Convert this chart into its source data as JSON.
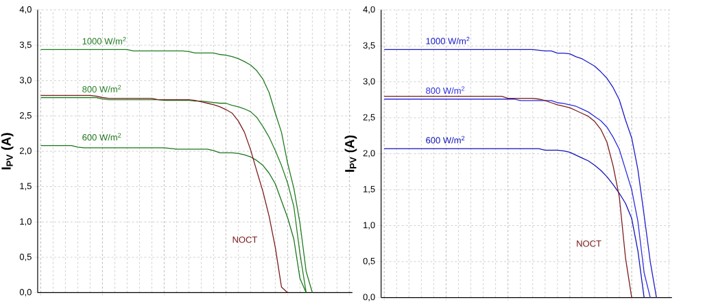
{
  "chart_data": [
    {
      "type": "line",
      "ylabel": "I$_{PV}$ (A)",
      "grid": true,
      "categories": [
        null,
        null,
        null,
        null,
        null,
        null,
        null,
        null,
        null,
        null,
        null,
        null,
        null,
        null,
        null,
        null,
        null,
        null,
        null,
        null,
        null,
        null,
        null,
        null,
        null,
        null,
        null,
        null,
        null,
        null,
        null,
        null,
        null,
        null,
        null,
        null,
        null,
        null,
        null,
        null,
        null,
        null,
        null,
        null,
        null,
        null,
        null,
        null,
        null,
        null,
        null
      ],
      "ylim": [
        0,
        4
      ],
      "yticks": [
        {
          "value": 0,
          "label": "0,0"
        },
        {
          "value": 0.5,
          "label": "0,5"
        },
        {
          "value": 1,
          "label": "1,0"
        },
        {
          "value": 1.5,
          "label": "1,5"
        },
        {
          "value": 2,
          "label": "2,0"
        },
        {
          "value": 2.5,
          "label": "2,5"
        },
        {
          "value": 3,
          "label": "3,0"
        },
        {
          "value": 3.5,
          "label": "3,5"
        },
        {
          "value": 4,
          "label": "4,0"
        }
      ],
      "series": [
        {
          "name": "1000 W/m$^{2}$",
          "color": "#1e7a1e",
          "values": [
            3.44,
            3.44,
            3.44,
            3.44,
            3.44,
            3.44,
            3.44,
            3.44,
            3.44,
            3.44,
            3.44,
            3.44,
            3.44,
            3.44,
            3.44,
            3.42,
            3.42,
            3.42,
            3.42,
            3.42,
            3.42,
            3.42,
            3.42,
            3.42,
            3.41,
            3.39,
            3.39,
            3.39,
            3.39,
            3.37,
            3.36,
            3.34,
            3.31,
            3.27,
            3.22,
            3.14,
            3.02,
            2.83,
            2.54,
            2.27,
            1.83,
            1.48,
            0.98,
            0.3,
            0,
            null,
            null,
            null,
            null,
            null,
            null
          ]
        },
        {
          "name": "800 W/m$^{2}$",
          "color": "#237f23",
          "values": [
            2.76,
            2.76,
            2.76,
            2.76,
            2.76,
            2.76,
            2.76,
            2.76,
            2.76,
            2.76,
            2.74,
            2.73,
            2.73,
            2.73,
            2.73,
            2.73,
            2.73,
            2.73,
            2.73,
            2.73,
            2.72,
            2.72,
            2.72,
            2.72,
            2.72,
            2.71,
            2.71,
            2.7,
            2.69,
            2.68,
            2.68,
            2.65,
            2.63,
            2.6,
            2.56,
            2.48,
            2.35,
            2.2,
            2.01,
            1.8,
            1.55,
            1.22,
            0.55,
            0,
            null,
            null,
            null,
            null,
            null,
            null,
            null
          ]
        },
        {
          "name": "600 W/m$^{2}$",
          "color": "#197519",
          "values": [
            2.08,
            2.08,
            2.08,
            2.08,
            2.08,
            2.08,
            2.06,
            2.05,
            2.05,
            2.05,
            2.05,
            2.05,
            2.05,
            2.05,
            2.05,
            2.05,
            2.05,
            2.05,
            2.05,
            2.05,
            2.05,
            2.04,
            2.03,
            2.03,
            2.03,
            2.03,
            2.03,
            2.03,
            2.01,
            1.98,
            1.98,
            1.98,
            1.97,
            1.95,
            1.92,
            1.87,
            1.8,
            1.69,
            1.54,
            1.3,
            1.06,
            0.76,
            0.2,
            0,
            null,
            null,
            null,
            null,
            null,
            null,
            null
          ]
        },
        {
          "name": "NOCT",
          "color": "#7a1a1a",
          "values": [
            2.79,
            2.79,
            2.79,
            2.79,
            2.79,
            2.79,
            2.79,
            2.79,
            2.79,
            2.78,
            2.76,
            2.75,
            2.75,
            2.75,
            2.75,
            2.75,
            2.75,
            2.75,
            2.75,
            2.73,
            2.73,
            2.73,
            2.73,
            2.73,
            2.73,
            2.72,
            2.7,
            2.68,
            2.66,
            2.63,
            2.59,
            2.54,
            2.43,
            2.27,
            2.02,
            1.72,
            1.43,
            1.08,
            0.64,
            0.08,
            0,
            null,
            null,
            null,
            null,
            null,
            null,
            null,
            null,
            null,
            null
          ]
        }
      ]
    },
    {
      "type": "line",
      "ylabel": "I$_{PV}$ (A)",
      "grid": true,
      "categories": [
        null,
        null,
        null,
        null,
        null,
        null,
        null,
        null,
        null,
        null,
        null,
        null,
        null,
        null,
        null,
        null,
        null,
        null,
        null,
        null,
        null,
        null,
        null,
        null,
        null,
        null,
        null,
        null,
        null,
        null,
        null,
        null,
        null,
        null,
        null,
        null,
        null,
        null,
        null,
        null,
        null,
        null,
        null,
        null,
        null,
        null,
        null
      ],
      "ylim": [
        0,
        4
      ],
      "yticks": [
        {
          "value": 0,
          "label": "0,0"
        },
        {
          "value": 0.5,
          "label": "0,5"
        },
        {
          "value": 1,
          "label": "1,0"
        },
        {
          "value": 1.5,
          "label": "1,5"
        },
        {
          "value": 2,
          "label": "2,0"
        },
        {
          "value": 2.5,
          "label": "2,5"
        },
        {
          "value": 3,
          "label": "3,0"
        },
        {
          "value": 3.5,
          "label": "3,5"
        },
        {
          "value": 4,
          "label": "4,0"
        }
      ],
      "series": [
        {
          "name": "1000 W/m$^{2}$",
          "color": "#1a1acc",
          "values": [
            3.45,
            3.45,
            3.45,
            3.45,
            3.45,
            3.45,
            3.45,
            3.45,
            3.45,
            3.45,
            3.45,
            3.45,
            3.45,
            3.45,
            3.45,
            3.45,
            3.45,
            3.45,
            3.45,
            3.45,
            3.45,
            3.45,
            3.45,
            3.45,
            3.45,
            3.44,
            3.43,
            3.43,
            3.4,
            3.4,
            3.39,
            3.35,
            3.32,
            3.27,
            3.22,
            3.14,
            3.05,
            2.92,
            2.75,
            2.47,
            2.22,
            1.78,
            1.15,
            0.5,
            0,
            null,
            null
          ]
        },
        {
          "name": "800 W/m$^{2}$",
          "color": "#2b2be2",
          "values": [
            2.76,
            2.76,
            2.76,
            2.76,
            2.76,
            2.76,
            2.76,
            2.76,
            2.76,
            2.76,
            2.76,
            2.76,
            2.76,
            2.76,
            2.76,
            2.76,
            2.76,
            2.76,
            2.76,
            2.76,
            2.76,
            2.76,
            2.74,
            2.74,
            2.74,
            2.74,
            2.74,
            2.74,
            2.71,
            2.7,
            2.68,
            2.66,
            2.62,
            2.58,
            2.52,
            2.46,
            2.37,
            2.23,
            2.06,
            1.78,
            1.5,
            1.06,
            0.35,
            0,
            null,
            null,
            null
          ]
        },
        {
          "name": "600 W/m$^{2}$",
          "color": "#1111b8",
          "values": [
            2.07,
            2.07,
            2.07,
            2.07,
            2.07,
            2.07,
            2.07,
            2.07,
            2.07,
            2.07,
            2.07,
            2.07,
            2.07,
            2.07,
            2.07,
            2.07,
            2.07,
            2.07,
            2.07,
            2.07,
            2.07,
            2.07,
            2.07,
            2.07,
            2.07,
            2.07,
            2.05,
            2.05,
            2.05,
            2.04,
            2.02,
            1.98,
            1.94,
            1.9,
            1.84,
            1.77,
            1.68,
            1.57,
            1.45,
            1.31,
            1.1,
            0.65,
            0,
            null,
            null,
            null,
            null
          ]
        },
        {
          "name": "NOCT",
          "color": "#7a1a1a",
          "values": [
            2.8,
            2.8,
            2.8,
            2.8,
            2.8,
            2.8,
            2.8,
            2.8,
            2.8,
            2.8,
            2.8,
            2.8,
            2.8,
            2.8,
            2.8,
            2.8,
            2.8,
            2.8,
            2.8,
            2.8,
            2.77,
            2.77,
            2.77,
            2.77,
            2.77,
            2.76,
            2.74,
            2.71,
            2.68,
            2.66,
            2.64,
            2.6,
            2.56,
            2.52,
            2.45,
            2.34,
            2.16,
            1.83,
            1.4,
            0.55,
            0,
            null,
            null,
            null,
            null,
            null,
            null
          ]
        }
      ]
    }
  ]
}
